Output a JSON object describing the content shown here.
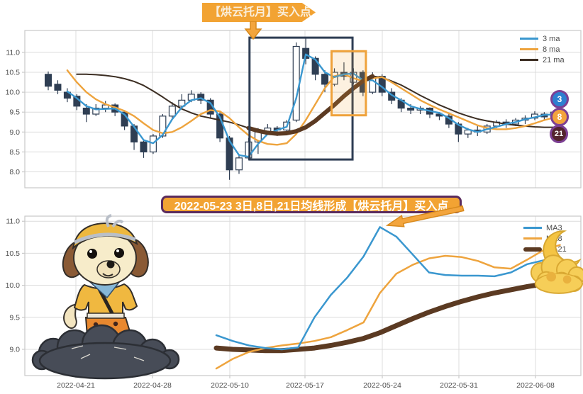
{
  "top_banner": {
    "text": "【烘云托月】买入点"
  },
  "signal_banner": {
    "text": "2022-05-23 3日,8日,21日均线形成【烘云托月】买入点"
  },
  "colors": {
    "ma3": "#3a97cf",
    "ma8": "#eea43e",
    "ma21": "#3c2e23",
    "ma21_thick": "#5b3a22",
    "candle": "#2f3e53",
    "grid": "#dcdcdc",
    "frame": "#c9c9c9",
    "tick_text": "#4d4d4d",
    "banner_orange": "#f2a333",
    "banner_border": "#5a2b5e",
    "badge_ring": "#7c3f93",
    "badge3_bg": "#2e7fd0",
    "badge8_bg": "#f2a33c",
    "badge21_bg": "#54242e",
    "arrow_orange": "#f3a53d",
    "arrow_outline": "#d88a1d",
    "box_navy": "#2e3d54",
    "box_orange": "#efa23b",
    "box_orange_fill": "rgba(243,166,60,0.16)"
  },
  "badges": [
    {
      "label": "3"
    },
    {
      "label": "8"
    },
    {
      "label": "21"
    }
  ],
  "chart_data": [
    {
      "type": "candlestick",
      "title": "",
      "ylim": [
        7.6,
        11.55
      ],
      "yticks": [
        "11.0",
        "10.5",
        "10.0",
        "9.5",
        "9.0",
        "8.5",
        "8.0"
      ],
      "ytick_values": [
        11.0,
        10.5,
        10.0,
        9.5,
        9.0,
        8.5,
        8.0
      ],
      "x_ticklabels": [
        "2022-04-21",
        "2022-04-28",
        "2022-05-10",
        "2022-05-17",
        "2022-05-24",
        "2022-05-31",
        "2022-06-08"
      ],
      "legend": [
        {
          "name": "3 ma",
          "key": "ma3"
        },
        {
          "name": "8 ma",
          "key": "ma8"
        },
        {
          "name": "21 ma",
          "key": "ma21"
        }
      ],
      "candles": [
        [
          10.45,
          10.52,
          10.05,
          10.15
        ],
        [
          10.2,
          10.3,
          9.95,
          10.05
        ],
        [
          10.0,
          10.1,
          9.75,
          9.85
        ],
        [
          9.9,
          9.95,
          9.55,
          9.65
        ],
        [
          9.6,
          9.7,
          9.25,
          9.45
        ],
        [
          9.45,
          9.7,
          9.4,
          9.6
        ],
        [
          9.6,
          9.78,
          9.5,
          9.68
        ],
        [
          9.68,
          9.72,
          9.4,
          9.5
        ],
        [
          9.5,
          9.55,
          9.05,
          9.15
        ],
        [
          9.15,
          9.2,
          8.55,
          8.75
        ],
        [
          8.75,
          8.8,
          8.35,
          8.5
        ],
        [
          8.5,
          8.95,
          8.45,
          8.9
        ],
        [
          8.9,
          9.45,
          8.85,
          9.4
        ],
        [
          9.4,
          9.75,
          9.35,
          9.65
        ],
        [
          9.65,
          9.95,
          9.6,
          9.8
        ],
        [
          9.8,
          10.05,
          9.75,
          9.95
        ],
        [
          9.95,
          10.0,
          9.7,
          9.8
        ],
        [
          9.8,
          9.85,
          9.35,
          9.45
        ],
        [
          9.45,
          9.5,
          8.75,
          8.85
        ],
        [
          8.85,
          8.9,
          7.8,
          8.05
        ],
        [
          8.05,
          8.45,
          7.95,
          8.35
        ],
        [
          8.35,
          8.85,
          8.3,
          8.75
        ],
        [
          8.75,
          9.1,
          8.45,
          9.0
        ],
        [
          9.0,
          9.2,
          8.95,
          9.1
        ],
        [
          9.1,
          9.15,
          8.9,
          9.05
        ],
        [
          9.05,
          9.3,
          9.0,
          9.25
        ],
        [
          9.3,
          11.25,
          9.25,
          11.15
        ],
        [
          11.1,
          11.37,
          10.7,
          10.85
        ],
        [
          10.85,
          10.9,
          10.3,
          10.45
        ],
        [
          10.45,
          10.55,
          10.0,
          10.2
        ],
        [
          10.2,
          10.6,
          10.15,
          10.5
        ],
        [
          10.5,
          10.75,
          10.3,
          10.4
        ],
        [
          10.25,
          10.6,
          10.2,
          10.5
        ],
        [
          10.5,
          10.55,
          9.9,
          10.0
        ],
        [
          10.0,
          10.5,
          9.95,
          10.4
        ],
        [
          10.4,
          10.45,
          9.9,
          10.0
        ],
        [
          10.0,
          10.1,
          9.7,
          9.8
        ],
        [
          9.8,
          9.85,
          9.5,
          9.6
        ],
        [
          9.6,
          9.7,
          9.45,
          9.55
        ],
        [
          9.55,
          9.65,
          9.45,
          9.6
        ],
        [
          9.6,
          9.62,
          9.35,
          9.45
        ],
        [
          9.45,
          9.5,
          9.3,
          9.4
        ],
        [
          9.4,
          9.45,
          9.1,
          9.2
        ],
        [
          9.2,
          9.25,
          8.75,
          8.95
        ],
        [
          8.95,
          9.1,
          8.85,
          9.05
        ],
        [
          9.05,
          9.15,
          8.9,
          9.0
        ],
        [
          9.0,
          9.2,
          8.95,
          9.15
        ],
        [
          9.15,
          9.3,
          9.1,
          9.25
        ],
        [
          9.25,
          9.32,
          9.1,
          9.2
        ],
        [
          9.2,
          9.35,
          9.15,
          9.3
        ],
        [
          9.3,
          9.42,
          9.2,
          9.35
        ],
        [
          9.35,
          9.52,
          9.3,
          9.45
        ],
        [
          9.45,
          9.5,
          9.28,
          9.38
        ],
        [
          9.38,
          9.55,
          9.33,
          9.5
        ],
        [
          9.5,
          9.55,
          9.35,
          9.42
        ]
      ],
      "series": [
        {
          "name": "3 ma",
          "key": "ma3",
          "width": 2.4,
          "values": [
            null,
            null,
            10.02,
            9.85,
            9.65,
            9.57,
            9.58,
            9.59,
            9.44,
            9.13,
            8.8,
            8.72,
            8.93,
            9.32,
            9.62,
            9.8,
            9.85,
            9.73,
            9.37,
            8.78,
            8.42,
            8.38,
            8.7,
            8.95,
            9.05,
            9.13,
            9.85,
            10.95,
            10.82,
            10.5,
            10.38,
            10.45,
            10.47,
            10.3,
            10.3,
            10.13,
            9.93,
            9.8,
            9.65,
            9.58,
            9.53,
            9.48,
            9.35,
            9.18,
            9.07,
            9.0,
            9.07,
            9.13,
            9.2,
            9.25,
            9.32,
            9.37,
            9.43,
            9.44,
            9.43
          ]
        },
        {
          "name": "8 ma",
          "key": "ma8",
          "width": 2.4,
          "values": [
            null,
            null,
            10.55,
            10.25,
            10.0,
            9.82,
            9.7,
            9.62,
            9.53,
            9.4,
            9.22,
            9.05,
            8.97,
            9.0,
            9.12,
            9.28,
            9.45,
            9.55,
            9.52,
            9.35,
            9.12,
            8.92,
            8.78,
            8.7,
            8.68,
            8.72,
            8.95,
            9.3,
            9.7,
            10.1,
            10.4,
            10.45,
            10.35,
            10.28,
            10.35,
            10.38,
            10.25,
            10.1,
            9.95,
            9.8,
            9.68,
            9.57,
            9.47,
            9.37,
            9.27,
            9.17,
            9.1,
            9.07,
            9.07,
            9.1,
            9.15,
            9.22,
            9.3,
            9.36,
            9.4
          ]
        },
        {
          "name": "21 ma",
          "key": "ma21",
          "width": 2.0,
          "values": [
            null,
            null,
            null,
            10.45,
            10.45,
            10.44,
            10.42,
            10.39,
            10.34,
            10.27,
            10.17,
            10.03,
            9.88,
            9.72,
            9.58,
            9.48,
            9.4,
            9.35,
            9.3,
            9.25,
            9.18,
            9.1,
            9.03,
            8.98,
            8.96,
            8.97,
            9.02,
            9.12,
            9.28,
            9.48,
            9.68,
            9.9,
            10.1,
            10.28,
            10.4,
            10.37,
            10.28,
            10.18,
            10.05,
            9.92,
            9.8,
            9.68,
            9.58,
            9.48,
            9.4,
            9.33,
            9.28,
            9.24,
            9.2,
            9.17,
            9.15,
            9.13,
            9.12,
            9.12,
            9.12
          ]
        }
      ],
      "ma21_thick_segment": {
        "from_index": 21,
        "to_index": 34
      },
      "annotation_boxes": {
        "pattern_box": {
          "from_index": 21.1,
          "to_index": 31.9,
          "v_top": 11.37,
          "v_bottom": 8.31
        },
        "entry_box": {
          "from_index": 29.7,
          "to_index": 33.3,
          "v_top": 11.03,
          "v_bottom": 9.42
        }
      }
    },
    {
      "type": "line",
      "title": "",
      "ylim": [
        8.59,
        11.08
      ],
      "yticks": [
        "11.0",
        "10.5",
        "10.0",
        "9.5",
        "9.0"
      ],
      "ytick_values": [
        11.0,
        10.5,
        10.0,
        9.5,
        9.0
      ],
      "x_ticklabels": [
        "2022-04-21",
        "2022-04-28",
        "2022-05-10",
        "2022-05-17",
        "2022-05-24",
        "2022-05-31",
        "2022-06-08"
      ],
      "legend": [
        {
          "name": "MA3",
          "key": "ma3"
        },
        {
          "name": "MA8",
          "key": "ma8"
        },
        {
          "name": "MA21",
          "key": "ma21_thick"
        }
      ],
      "series": [
        {
          "name": "MA21",
          "key": "ma21_thick",
          "width": 7,
          "values": [
            9.02,
            9.0,
            8.99,
            8.98,
            8.98,
            9.0,
            9.02,
            9.06,
            9.11,
            9.17,
            9.26,
            9.37,
            9.48,
            9.58,
            9.67,
            9.75,
            9.82,
            9.88,
            9.93,
            9.98,
            10.02,
            10.06
          ]
        },
        {
          "name": "MA8",
          "key": "ma8",
          "width": 2.5,
          "values": [
            8.7,
            8.85,
            8.96,
            9.02,
            9.06,
            9.09,
            9.13,
            9.19,
            9.3,
            9.42,
            9.88,
            10.18,
            10.32,
            10.42,
            10.46,
            10.44,
            10.38,
            10.28,
            10.26,
            10.4,
            10.55,
            10.63
          ]
        },
        {
          "name": "MA3",
          "key": "ma3",
          "width": 2.5,
          "values": [
            9.22,
            9.13,
            9.06,
            9.02,
            9.0,
            9.03,
            9.5,
            9.85,
            10.12,
            10.45,
            10.91,
            10.76,
            10.48,
            10.2,
            10.16,
            10.15,
            10.15,
            10.14,
            10.2,
            10.33,
            10.39,
            10.28
          ]
        }
      ]
    }
  ],
  "icons": {
    "mascot": "dog-on-dark-cloud",
    "moon": "cloud-moon",
    "down_arrow": "orange-down-arrow",
    "signal_arrow": "orange-diagonal-arrow"
  }
}
